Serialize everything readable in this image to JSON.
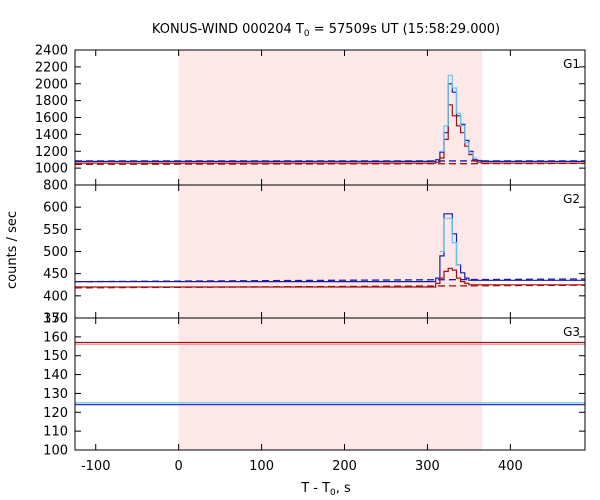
{
  "chart_data": [
    {
      "type": "line",
      "title_main": "KONUS-WIND 000204 T",
      "title_sub": "0",
      "title_rest": " = 57509s UT (15:58:29.000)",
      "xlabel_main": "T - T",
      "xlabel_sub": "0",
      "xlabel_rest": ", s",
      "ylabel": "counts / sec",
      "xlim": [
        -125,
        490
      ],
      "xticks": [
        -100,
        0,
        100,
        200,
        300,
        400
      ],
      "highlight_interval": [
        0,
        366
      ],
      "highlight_color": "#fde8e8",
      "panels": [
        {
          "name": "G1",
          "ylim": [
            800,
            2400
          ],
          "yticks": [
            800,
            1000,
            1200,
            1400,
            1600,
            1800,
            2000,
            2200,
            2400
          ],
          "series": [
            {
              "style": "step",
              "color": "#1a1aa8",
              "x": [
                -125,
                310,
                315,
                320,
                325,
                330,
                335,
                340,
                345,
                350,
                355,
                360,
                365,
                490
              ],
              "values": [
                1080,
                1100,
                1190,
                1420,
                2000,
                1900,
                1620,
                1520,
                1330,
                1200,
                1100,
                1090,
                1080,
                1080
              ]
            },
            {
              "style": "step",
              "color": "#a01010",
              "x": [
                -125,
                310,
                315,
                320,
                325,
                330,
                335,
                340,
                345,
                350,
                355,
                360,
                365,
                490
              ],
              "values": [
                1060,
                1070,
                1120,
                1340,
                1750,
                1620,
                1500,
                1420,
                1260,
                1160,
                1090,
                1070,
                1060,
                1060
              ]
            },
            {
              "style": "step",
              "color": "#66c4f0",
              "x": [
                315,
                320,
                325,
                330,
                335,
                340,
                345,
                350,
                355,
                360
              ],
              "values": [
                1200,
                1500,
                2100,
                1950,
                1650,
                1500,
                1300,
                1180,
                1120,
                1100
              ]
            }
          ],
          "background_levels": [
            {
              "color": "#1a1aa8",
              "y0": 1085,
              "y1": 1085,
              "dashed": true
            },
            {
              "color": "#a01010",
              "y0": 1045,
              "y1": 1055,
              "dashed": true
            }
          ]
        },
        {
          "name": "G2",
          "ylim": [
            350,
            650
          ],
          "yticks": [
            350,
            400,
            450,
            500,
            550,
            600
          ],
          "series": [
            {
              "style": "step",
              "color": "#1a1aa8",
              "x": [
                -125,
                310,
                315,
                320,
                325,
                330,
                335,
                340,
                345,
                350,
                490
              ],
              "values": [
                432,
                440,
                490,
                585,
                585,
                540,
                470,
                452,
                440,
                435,
                435
              ]
            },
            {
              "style": "step",
              "color": "#a01010",
              "x": [
                -125,
                310,
                315,
                320,
                325,
                330,
                335,
                340,
                345,
                350,
                490
              ],
              "values": [
                420,
                428,
                440,
                455,
                462,
                458,
                440,
                432,
                428,
                425,
                425
              ]
            },
            {
              "style": "step",
              "color": "#66c4f0",
              "x": [
                315,
                320,
                325,
                330,
                335,
                340
              ],
              "values": [
                500,
                575,
                575,
                520,
                470,
                445
              ]
            }
          ],
          "background_levels": [
            {
              "color": "#1a1aa8",
              "y0": 432,
              "y1": 438,
              "dashed": true
            },
            {
              "color": "#a01010",
              "y0": 418,
              "y1": 424,
              "dashed": true
            }
          ]
        },
        {
          "name": "G3",
          "ylim": [
            100,
            170
          ],
          "yticks": [
            100,
            110,
            120,
            130,
            140,
            150,
            160,
            170
          ],
          "series": [
            {
              "style": "step",
              "color": "#a01010",
              "x": [
                -125,
                490
              ],
              "values": [
                157,
                157
              ]
            },
            {
              "style": "step",
              "color": "#1a1aa8",
              "x": [
                -125,
                490
              ],
              "values": [
                124,
                124
              ]
            }
          ],
          "background_levels": [
            {
              "color": "#f09aa8",
              "y0": 156,
              "y1": 156,
              "dashed": false
            },
            {
              "color": "#66c4f0",
              "y0": 125,
              "y1": 125,
              "dashed": false
            }
          ]
        }
      ]
    }
  ]
}
